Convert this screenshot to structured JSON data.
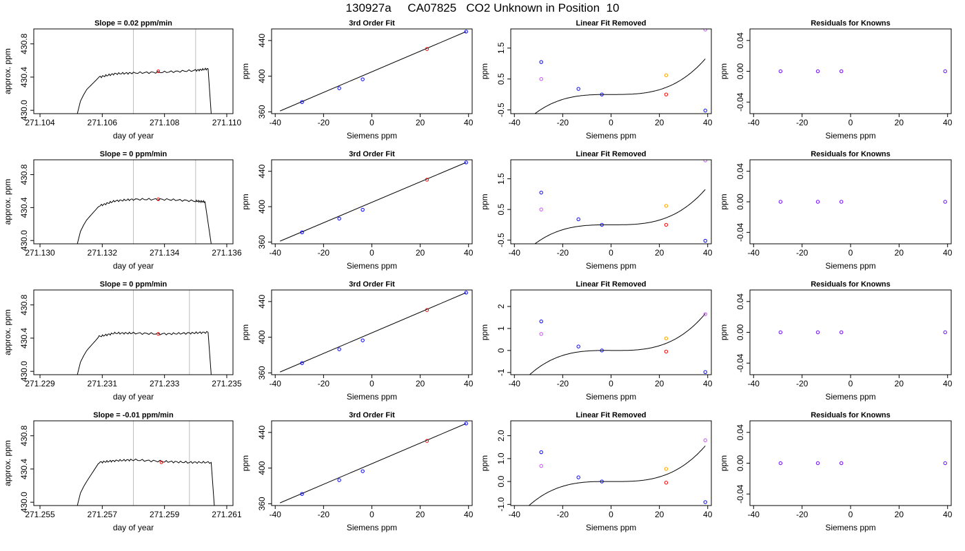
{
  "title": "130927a     CA07825   CO2 Unknown in Position  10",
  "colors": {
    "line": "#000000",
    "known": "#0000ff",
    "unknown": "#ff0000",
    "orange": "#ffa500",
    "magenta": "#cc44ff",
    "vline": "#bebebe",
    "purple": "#6a00ff"
  },
  "chart_data": [
    {
      "type": "line",
      "title": "Slope =  0.02  ppm/min",
      "xlabel": "day of year",
      "ylabel": "approx. ppm",
      "xlim": [
        271.1038,
        271.1102
      ],
      "ylim": [
        429.96,
        430.98
      ],
      "xticks": [
        271.104,
        271.106,
        271.108,
        271.11
      ],
      "xtick_labels": [
        "271.104",
        "271.106",
        "271.108",
        "271.110"
      ],
      "yticks": [
        430.0,
        430.4,
        430.8
      ],
      "ytick_labels": [
        "430.0",
        "430.4",
        "430.8"
      ],
      "vlines": [
        271.107,
        271.109
      ],
      "marker": [
        271.1078,
        430.47
      ],
      "x": [
        271.1052,
        271.1055,
        271.1059,
        271.1064,
        271.107,
        271.108,
        271.109,
        271.1094,
        271.1095
      ],
      "y": [
        429.96,
        430.25,
        430.4,
        430.44,
        430.45,
        430.46,
        430.48,
        430.5,
        429.96
      ]
    },
    {
      "type": "scatter",
      "title": "3rd Order Fit",
      "xlabel": "Siemens ppm",
      "ylabel": "ppm",
      "xlim": [
        -41.5,
        41.5
      ],
      "ylim": [
        358,
        453
      ],
      "xticks": [
        -40,
        -20,
        0,
        20,
        40
      ],
      "xtick_labels": [
        "-40",
        "-20",
        "0",
        "20",
        "40"
      ],
      "yticks": [
        360,
        400,
        440
      ],
      "ytick_labels": [
        "360",
        "400",
        "440"
      ],
      "knowns": [
        [
          -28.9,
          371
        ],
        [
          -13.5,
          386.5
        ],
        [
          -3.8,
          396.5
        ],
        [
          39,
          450
        ]
      ],
      "unknown": [
        [
          22.8,
          430.5
        ]
      ],
      "fit": "line"
    },
    {
      "type": "scatter",
      "title": "Linear Fit Removed",
      "xlabel": "Siemens ppm",
      "ylabel": "ppm",
      "xlim": [
        -41.5,
        41.5
      ],
      "ylim": [
        -0.62,
        2.12
      ],
      "xticks": [
        -40,
        -20,
        0,
        20,
        40
      ],
      "xtick_labels": [
        "-40",
        "-20",
        "0",
        "20",
        "40"
      ],
      "yticks": [
        -0.5,
        0.5,
        1.5
      ],
      "ytick_labels": [
        "-0.5",
        "0.5",
        "1.5"
      ],
      "knowns": [
        [
          -28.9,
          1.05
        ],
        [
          -13.5,
          0.18
        ],
        [
          -3.8,
          0.0
        ],
        [
          39,
          -0.52
        ]
      ],
      "unknown": [
        [
          22.8,
          0.0
        ]
      ],
      "orange": [
        [
          22.8,
          0.62
        ]
      ],
      "magenta": [
        [
          -28.9,
          0.5
        ],
        [
          39,
          2.1
        ]
      ],
      "curve": [
        1.962e-05,
        -7.3e-06,
        0.0,
        0.0
      ]
    },
    {
      "type": "scatter",
      "title": "Residuals for Knowns",
      "xlabel": "Siemens ppm",
      "ylabel": "ppm",
      "xlim": [
        -41.5,
        41.5
      ],
      "ylim": [
        -0.055,
        0.055
      ],
      "xticks": [
        -40,
        -20,
        0,
        20,
        40
      ],
      "xtick_labels": [
        "-40",
        "-20",
        "0",
        "20",
        "40"
      ],
      "yticks": [
        -0.04,
        0.0,
        0.04
      ],
      "ytick_labels": [
        "-0.04",
        "0.00",
        "0.04"
      ],
      "residuals": [
        [
          -28.9,
          0
        ],
        [
          -13.5,
          0
        ],
        [
          -3.8,
          0
        ],
        [
          39,
          0
        ]
      ]
    },
    {
      "type": "line",
      "title": "Slope =  0  ppm/min",
      "xlabel": "day of year",
      "ylabel": "approx. ppm",
      "xlim": [
        271.1298,
        271.1362
      ],
      "ylim": [
        429.96,
        430.98
      ],
      "xticks": [
        271.13,
        271.132,
        271.134,
        271.136
      ],
      "xtick_labels": [
        "271.130",
        "271.132",
        "271.134",
        "271.136"
      ],
      "yticks": [
        430.0,
        430.4,
        430.8
      ],
      "ytick_labels": [
        "430.0",
        "430.4",
        "430.8"
      ],
      "vlines": [
        271.133,
        271.135
      ],
      "marker": [
        271.1338,
        430.5
      ],
      "x": [
        271.1312,
        271.1315,
        271.1319,
        271.1324,
        271.133,
        271.134,
        271.135,
        271.1353,
        271.1355
      ],
      "y": [
        429.96,
        430.25,
        430.42,
        430.48,
        430.5,
        430.5,
        430.48,
        430.47,
        429.96
      ]
    },
    {
      "type": "scatter",
      "title": "3rd Order Fit",
      "xlabel": "Siemens ppm",
      "ylabel": "ppm",
      "xlim": [
        -41.5,
        41.5
      ],
      "ylim": [
        358,
        453
      ],
      "xticks": [
        -40,
        -20,
        0,
        20,
        40
      ],
      "xtick_labels": [
        "-40",
        "-20",
        "0",
        "20",
        "40"
      ],
      "yticks": [
        360,
        400,
        440
      ],
      "ytick_labels": [
        "360",
        "400",
        "440"
      ],
      "knowns": [
        [
          -28.9,
          371
        ],
        [
          -13.5,
          386.5
        ],
        [
          -3.8,
          396.5
        ],
        [
          39,
          450
        ]
      ],
      "unknown": [
        [
          22.8,
          430.5
        ]
      ],
      "fit": "line"
    },
    {
      "type": "scatter",
      "title": "Linear Fit Removed",
      "xlabel": "Siemens ppm",
      "ylabel": "ppm",
      "xlim": [
        -41.5,
        41.5
      ],
      "ylim": [
        -0.62,
        2.12
      ],
      "xticks": [
        -40,
        -20,
        0,
        20,
        40
      ],
      "xtick_labels": [
        "-40",
        "-20",
        "0",
        "20",
        "40"
      ],
      "yticks": [
        -0.5,
        0.5,
        1.5
      ],
      "ytick_labels": [
        "-0.5",
        "0.5",
        "1.5"
      ],
      "knowns": [
        [
          -28.9,
          1.05
        ],
        [
          -13.5,
          0.18
        ],
        [
          -3.8,
          0.0
        ],
        [
          39,
          -0.52
        ]
      ],
      "unknown": [
        [
          22.8,
          0.0
        ]
      ],
      "orange": [
        [
          22.8,
          0.62
        ]
      ],
      "magenta": [
        [
          -28.9,
          0.5
        ],
        [
          39,
          2.1
        ]
      ],
      "curve": [
        1.962e-05,
        -7.3e-06,
        0.0,
        0.0
      ]
    },
    {
      "type": "scatter",
      "title": "Residuals for Knowns",
      "xlabel": "Siemens ppm",
      "ylabel": "ppm",
      "xlim": [
        -41.5,
        41.5
      ],
      "ylim": [
        -0.055,
        0.055
      ],
      "xticks": [
        -40,
        -20,
        0,
        20,
        40
      ],
      "xtick_labels": [
        "-40",
        "-20",
        "0",
        "20",
        "40"
      ],
      "yticks": [
        -0.04,
        0.0,
        0.04
      ],
      "ytick_labels": [
        "-0.04",
        "0.00",
        "0.04"
      ],
      "residuals": [
        [
          -28.9,
          0
        ],
        [
          -13.5,
          0
        ],
        [
          -3.8,
          0
        ],
        [
          39,
          0
        ]
      ]
    },
    {
      "type": "line",
      "title": "Slope =  0  ppm/min",
      "xlabel": "day of year",
      "ylabel": "approx. ppm",
      "xlim": [
        271.2288,
        271.2352
      ],
      "ylim": [
        429.96,
        430.98
      ],
      "xticks": [
        271.229,
        271.231,
        271.233,
        271.235
      ],
      "xtick_labels": [
        "271.229",
        "271.231",
        "271.233",
        "271.235"
      ],
      "yticks": [
        430.0,
        430.4,
        430.8
      ],
      "ytick_labels": [
        "430.0",
        "430.4",
        "430.8"
      ],
      "vlines": [
        271.232,
        271.2338
      ],
      "marker": [
        271.2328,
        430.45
      ],
      "x": [
        271.2302,
        271.2305,
        271.2309,
        271.2314,
        271.232,
        271.233,
        271.2338,
        271.2344,
        271.2345
      ],
      "y": [
        429.96,
        430.25,
        430.42,
        430.46,
        430.46,
        430.45,
        430.46,
        430.47,
        429.96
      ]
    },
    {
      "type": "scatter",
      "title": "3rd Order Fit",
      "xlabel": "Siemens ppm",
      "ylabel": "ppm",
      "xlim": [
        -41.5,
        41.5
      ],
      "ylim": [
        358,
        453
      ],
      "xticks": [
        -40,
        -20,
        0,
        20,
        40
      ],
      "xtick_labels": [
        "-40",
        "-20",
        "0",
        "20",
        "40"
      ],
      "yticks": [
        360,
        400,
        440
      ],
      "ytick_labels": [
        "360",
        "400",
        "440"
      ],
      "knowns": [
        [
          -28.9,
          371
        ],
        [
          -13.5,
          386.5
        ],
        [
          -3.8,
          396.5
        ],
        [
          39,
          450
        ]
      ],
      "unknown": [
        [
          22.8,
          430.5
        ]
      ],
      "fit": "line"
    },
    {
      "type": "scatter",
      "title": "Linear Fit Removed",
      "xlabel": "Siemens ppm",
      "ylabel": "ppm",
      "xlim": [
        -41.5,
        41.5
      ],
      "ylim": [
        -1.1,
        2.75
      ],
      "xticks": [
        -40,
        -20,
        0,
        20,
        40
      ],
      "xtick_labels": [
        "-40",
        "-20",
        "0",
        "20",
        "40"
      ],
      "yticks": [
        -1,
        0,
        1,
        2
      ],
      "ytick_labels": [
        "-1",
        "0",
        "1",
        "2"
      ],
      "knowns": [
        [
          -28.9,
          1.32
        ],
        [
          -13.5,
          0.18
        ],
        [
          -3.8,
          0.0
        ],
        [
          39,
          -0.98
        ]
      ],
      "unknown": [
        [
          22.8,
          -0.05
        ]
      ],
      "orange": [
        [
          22.8,
          0.55
        ]
      ],
      "magenta": [
        [
          -28.9,
          0.75
        ],
        [
          39,
          1.65
        ]
      ],
      "curve": [
        2.89e-05,
        -1.24e-05,
        -0.0005,
        0.0
      ]
    },
    {
      "type": "scatter",
      "title": "Residuals for Knowns",
      "xlabel": "Siemens ppm",
      "ylabel": "ppm",
      "xlim": [
        -41.5,
        41.5
      ],
      "ylim": [
        -0.055,
        0.055
      ],
      "xticks": [
        -40,
        -20,
        0,
        20,
        40
      ],
      "xtick_labels": [
        "-40",
        "-20",
        "0",
        "20",
        "40"
      ],
      "yticks": [
        -0.04,
        0.0,
        0.04
      ],
      "ytick_labels": [
        "-0.04",
        "0.00",
        "0.04"
      ],
      "residuals": [
        [
          -28.9,
          0
        ],
        [
          -13.5,
          0
        ],
        [
          -3.8,
          0
        ],
        [
          39,
          0
        ]
      ]
    },
    {
      "type": "line",
      "title": "Slope =  -0.01  ppm/min",
      "xlabel": "day of year",
      "ylabel": "approx. ppm",
      "xlim": [
        271.2548,
        271.2612
      ],
      "ylim": [
        429.96,
        430.98
      ],
      "xticks": [
        271.255,
        271.257,
        271.259,
        271.261
      ],
      "xtick_labels": [
        "271.255",
        "271.257",
        "271.259",
        "271.261"
      ],
      "yticks": [
        430.0,
        430.4,
        430.8
      ],
      "ytick_labels": [
        "430.0",
        "430.4",
        "430.8"
      ],
      "vlines": [
        271.258,
        271.2598
      ],
      "marker": [
        271.2589,
        430.48
      ],
      "x": [
        271.2562,
        271.2565,
        271.2569,
        271.2574,
        271.258,
        271.259,
        271.2598,
        271.2605,
        271.2606
      ],
      "y": [
        429.96,
        430.25,
        430.48,
        430.5,
        430.51,
        430.49,
        430.48,
        430.48,
        429.96
      ]
    },
    {
      "type": "scatter",
      "title": "3rd Order Fit",
      "xlabel": "Siemens ppm",
      "ylabel": "ppm",
      "xlim": [
        -41.5,
        41.5
      ],
      "ylim": [
        358,
        453
      ],
      "xticks": [
        -40,
        -20,
        0,
        20,
        40
      ],
      "xtick_labels": [
        "-40",
        "-20",
        "0",
        "20",
        "40"
      ],
      "yticks": [
        360,
        400,
        440
      ],
      "ytick_labels": [
        "360",
        "400",
        "440"
      ],
      "knowns": [
        [
          -28.9,
          371
        ],
        [
          -13.5,
          386.5
        ],
        [
          -3.8,
          396.5
        ],
        [
          39,
          450
        ]
      ],
      "unknown": [
        [
          22.8,
          430.5
        ]
      ],
      "fit": "line"
    },
    {
      "type": "scatter",
      "title": "Linear Fit Removed",
      "xlabel": "Siemens ppm",
      "ylabel": "ppm",
      "xlim": [
        -41.5,
        41.5
      ],
      "ylim": [
        -1.05,
        2.65
      ],
      "xticks": [
        -40,
        -20,
        0,
        20,
        40
      ],
      "xtick_labels": [
        "-40",
        "-20",
        "0",
        "20",
        "40"
      ],
      "yticks": [
        -1.0,
        0.0,
        1.0,
        2.0
      ],
      "ytick_labels": [
        "-1.0",
        "0.0",
        "1.0",
        "2.0"
      ],
      "knowns": [
        [
          -28.9,
          1.28
        ],
        [
          -13.5,
          0.18
        ],
        [
          -3.8,
          0.0
        ],
        [
          39,
          -0.9
        ]
      ],
      "unknown": [
        [
          22.8,
          -0.05
        ]
      ],
      "orange": [
        [
          22.8,
          0.55
        ]
      ],
      "magenta": [
        [
          -28.9,
          0.68
        ],
        [
          39,
          1.8
        ]
      ],
      "curve": [
        2.69e-05,
        -1.15e-05,
        -0.0005,
        0.0
      ]
    },
    {
      "type": "scatter",
      "title": "Residuals for Knowns",
      "xlabel": "Siemens ppm",
      "ylabel": "ppm",
      "xlim": [
        -41.5,
        41.5
      ],
      "ylim": [
        -0.055,
        0.055
      ],
      "xticks": [
        -40,
        -20,
        0,
        20,
        40
      ],
      "xtick_labels": [
        "-40",
        "-20",
        "0",
        "20",
        "40"
      ],
      "yticks": [
        -0.04,
        0.0,
        0.04
      ],
      "ytick_labels": [
        "-0.04",
        "0.00",
        "0.04"
      ],
      "residuals": [
        [
          -28.9,
          0
        ],
        [
          -13.5,
          0
        ],
        [
          -3.8,
          0
        ],
        [
          39,
          0
        ]
      ]
    }
  ]
}
